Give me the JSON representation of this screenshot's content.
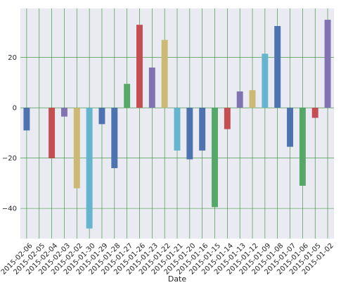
{
  "chart_data": {
    "type": "bar",
    "xlabel": "Date",
    "ylabel": "",
    "ylim": [
      -52,
      39.5
    ],
    "yticks": [
      -40,
      -20,
      0,
      20
    ],
    "grid": true,
    "grid_color": "#2e8b2e",
    "plot_background": "#eaeaf2",
    "categories": [
      "2015-02-06",
      "2015-02-05",
      "2015-02-04",
      "2015-02-03",
      "2015-02-02",
      "2015-01-30",
      "2015-01-29",
      "2015-01-28",
      "2015-01-27",
      "2015-01-26",
      "2015-01-23",
      "2015-01-22",
      "2015-01-21",
      "2015-01-20",
      "2015-01-16",
      "2015-01-15",
      "2015-01-14",
      "2015-01-13",
      "2015-01-12",
      "2015-01-09",
      "2015-01-08",
      "2015-01-07",
      "2015-01-06",
      "2015-01-05",
      "2015-01-02"
    ],
    "values": [
      -9,
      0,
      -20,
      -3.5,
      -32,
      -48,
      -6.5,
      -24,
      9.5,
      33,
      16,
      27,
      -17,
      -20.5,
      -17,
      -39.5,
      -8.5,
      6.5,
      7,
      21.5,
      32.5,
      -15.5,
      -31,
      -4,
      35
    ],
    "colors": [
      "#4c72b0",
      "#55a868",
      "#c44e52",
      "#8172b2",
      "#ccb974",
      "#64b5cd",
      "#4c72b0",
      "#4c72b0",
      "#55a868",
      "#c44e52",
      "#8172b2",
      "#ccb974",
      "#64b5cd",
      "#4c72b0",
      "#4c72b0",
      "#55a868",
      "#c44e52",
      "#8172b2",
      "#ccb974",
      "#64b5cd",
      "#4c72b0",
      "#4c72b0",
      "#55a868",
      "#c44e52",
      "#8172b2"
    ]
  }
}
